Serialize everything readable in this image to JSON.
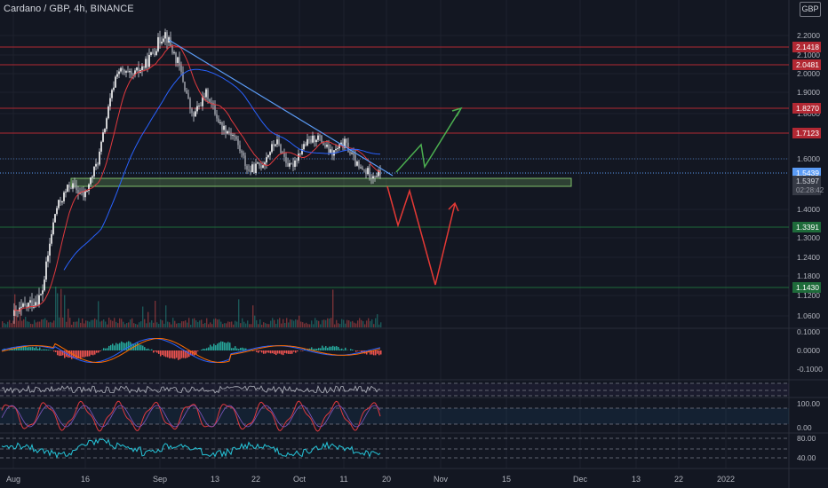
{
  "header": {
    "title": "Cardano / GBP, 4h, BINANCE",
    "currency": "GBP"
  },
  "chart_data": [
    {
      "type": "candlestick",
      "title": "Cardano / GBP, 4h, BINANCE",
      "price_axis_ticks": [
        "2.2000",
        "2.1000",
        "2.0000",
        "1.9000",
        "1.8000",
        "1.6000",
        "1.4000",
        "1.3000",
        "1.2400",
        "1.1800",
        "1.1200",
        "1.0600"
      ],
      "x_axis_ticks": [
        "Aug",
        "16",
        "Sep",
        "13",
        "22",
        "Oct",
        "11",
        "20",
        "Nov",
        "15",
        "Dec",
        "13",
        "22",
        "2022"
      ],
      "ylim_approx": [
        1.03,
        2.26
      ],
      "price_samples": [
        {
          "date": "Aug 01",
          "close": 1.06
        },
        {
          "date": "Aug 07",
          "close": 1.12
        },
        {
          "date": "Aug 10",
          "close": 1.4
        },
        {
          "date": "Aug 13",
          "close": 1.5
        },
        {
          "date": "Aug 16",
          "close": 1.45
        },
        {
          "date": "Aug 19",
          "close": 1.6
        },
        {
          "date": "Aug 23",
          "close": 2.02
        },
        {
          "date": "Aug 26",
          "close": 1.98
        },
        {
          "date": "Aug 29",
          "close": 2.05
        },
        {
          "date": "Sep 02",
          "close": 2.22
        },
        {
          "date": "Sep 05",
          "close": 2.05
        },
        {
          "date": "Sep 08",
          "close": 1.78
        },
        {
          "date": "Sep 11",
          "close": 1.9
        },
        {
          "date": "Sep 14",
          "close": 1.75
        },
        {
          "date": "Sep 17",
          "close": 1.7
        },
        {
          "date": "Sep 20",
          "close": 1.55
        },
        {
          "date": "Sep 23",
          "close": 1.58
        },
        {
          "date": "Sep 26",
          "close": 1.68
        },
        {
          "date": "Sep 29",
          "close": 1.56
        },
        {
          "date": "Oct 02",
          "close": 1.66
        },
        {
          "date": "Oct 05",
          "close": 1.7
        },
        {
          "date": "Oct 08",
          "close": 1.62
        },
        {
          "date": "Oct 11",
          "close": 1.67
        },
        {
          "date": "Oct 14",
          "close": 1.56
        },
        {
          "date": "Oct 17",
          "close": 1.54
        }
      ],
      "horizontal_levels": [
        {
          "label": "2.1418",
          "value": 2.1418,
          "color": "#b22833"
        },
        {
          "label": "2.0481",
          "value": 2.0481,
          "color": "#b22833"
        },
        {
          "label": "1.8270",
          "value": 1.827,
          "color": "#b22833"
        },
        {
          "label": "1.7123",
          "value": 1.7123,
          "color": "#b22833"
        },
        {
          "label": "1.3391",
          "value": 1.3391,
          "color": "#1e6b3a"
        },
        {
          "label": "1.1430",
          "value": 1.143,
          "color": "#1e6b3a"
        }
      ],
      "last_price": {
        "label": "1.5439",
        "value": 1.5439,
        "color": "#5b9cf6"
      },
      "crosshair_label": {
        "price": "1.5397",
        "time": "02:28:42"
      },
      "support_zone": {
        "from": 1.49,
        "to": 1.515,
        "color": "#7fbf6a"
      },
      "colors": {
        "up": "#26a69a",
        "down": "#ef5350",
        "candles": "#d1d4dc",
        "ma_fast": "#e0393e",
        "ma_slow": "#2962ff",
        "trendline": "#5b9cf6",
        "bull_arrow": "#4caf50",
        "bear_arrow": "#e53935"
      }
    },
    {
      "type": "line",
      "indicator": "MACD",
      "price_axis_ticks": [
        "0.1000",
        "0.0000",
        "-0.1000"
      ]
    },
    {
      "type": "line",
      "indicator": "oscillator",
      "price_axis_ticks": []
    },
    {
      "type": "line",
      "indicator": "stochastic",
      "price_axis_ticks": [
        "100.00",
        "0.00"
      ]
    },
    {
      "type": "line",
      "indicator": "RSI",
      "price_axis_ticks": [
        "80.00",
        "40.00"
      ]
    }
  ]
}
